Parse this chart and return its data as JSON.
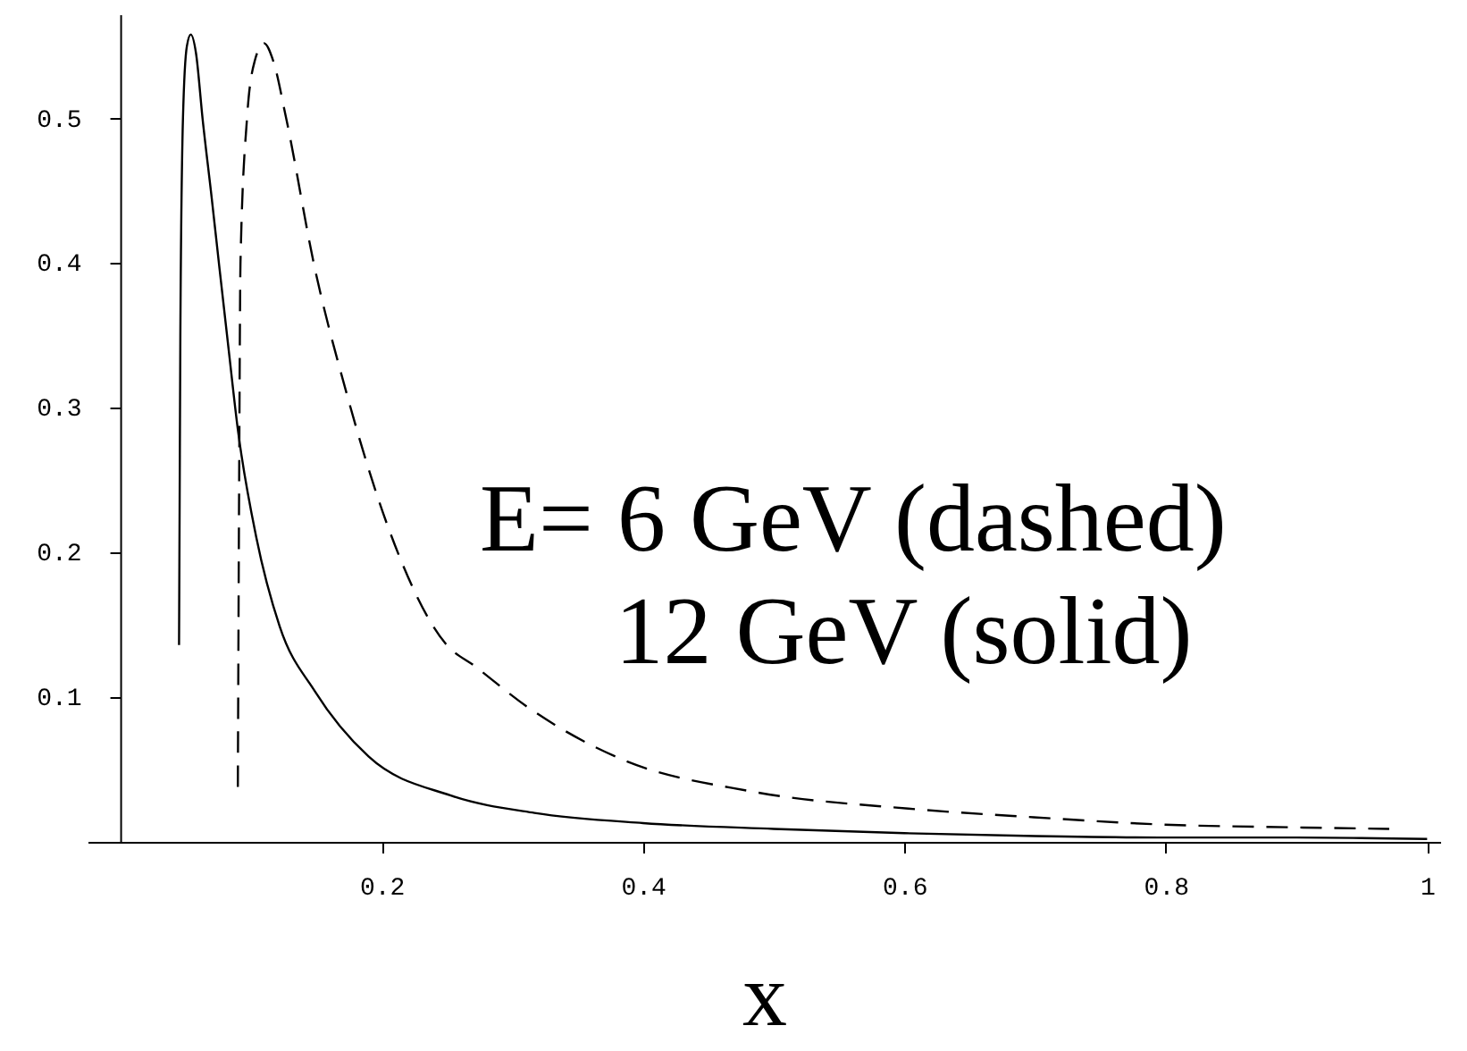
{
  "chart_data": {
    "type": "line",
    "xlabel": "x",
    "annotations": [
      "E= 6 GeV (dashed)",
      "12 GeV (solid)"
    ],
    "xlim": [
      -0.025,
      1.01
    ],
    "ylim": [
      0,
      0.572
    ],
    "xticks": [
      0.2,
      0.4,
      0.6,
      0.8,
      1
    ],
    "yticks": [
      0.1,
      0.2,
      0.3,
      0.4,
      0.5
    ],
    "grid": false,
    "marker": "none",
    "series": [
      {
        "color": "#000000",
        "line_style": "solid",
        "x": [
          0.045,
          0.046,
          0.048,
          0.051,
          0.054,
          0.058,
          0.063,
          0.07,
          0.076,
          0.083,
          0.09,
          0.104,
          0.122,
          0.149,
          0.19,
          0.253,
          0.317,
          0.4,
          0.5,
          0.6,
          0.7,
          0.8,
          0.9,
          1.0
        ],
        "values": [
          0.136,
          0.35,
          0.5,
          0.55,
          0.558,
          0.545,
          0.5,
          0.445,
          0.396,
          0.34,
          0.285,
          0.211,
          0.149,
          0.104,
          0.059,
          0.032,
          0.02,
          0.013,
          0.009,
          0.006,
          0.004,
          0.003,
          0.003,
          0.002
        ]
      },
      {
        "color": "#000000",
        "line_style": "dashed",
        "x": [
          0.09,
          0.091,
          0.092,
          0.097,
          0.103,
          0.11,
          0.117,
          0.127,
          0.149,
          0.172,
          0.204,
          0.249,
          0.272,
          0.312,
          0.384,
          0.482,
          0.603,
          0.699,
          0.797,
          0.9,
          0.971
        ],
        "values": [
          0.038,
          0.25,
          0.4,
          0.5,
          0.54,
          0.552,
          0.54,
          0.5,
          0.396,
          0.314,
          0.22,
          0.137,
          0.121,
          0.093,
          0.057,
          0.035,
          0.023,
          0.017,
          0.012,
          0.01,
          0.009
        ]
      }
    ]
  }
}
